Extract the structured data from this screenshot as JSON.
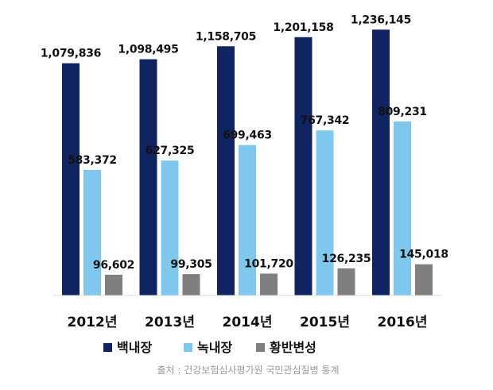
{
  "chart_data": {
    "type": "bar",
    "categories": [
      "2012년",
      "2013년",
      "2014년",
      "2015년",
      "2016년"
    ],
    "series": [
      {
        "name": "백내장",
        "color": "#0f2460",
        "values": [
          1079836,
          1098495,
          1158705,
          1201158,
          1236145
        ],
        "labels": [
          "1,079,836",
          "1,098,495",
          "1,158,705",
          "1,201,158",
          "1,236,145"
        ]
      },
      {
        "name": "녹내장",
        "color": "#7dc8ec",
        "values": [
          583372,
          627325,
          699463,
          767342,
          809231
        ],
        "labels": [
          "583,372",
          "627,325",
          "699,463",
          "767,342",
          "809,231"
        ]
      },
      {
        "name": "황반변성",
        "color": "#7f7f7f",
        "values": [
          96602,
          99305,
          101720,
          126235,
          145018
        ],
        "labels": [
          "96,602",
          "99,305",
          "101,720",
          "126,235",
          "145,018"
        ]
      }
    ],
    "ylim": [
      0,
      1300000
    ],
    "grid": false,
    "legend": "bottom-center",
    "source": "출처 :  건강보험심사평가원 국민관심질병 통계"
  }
}
